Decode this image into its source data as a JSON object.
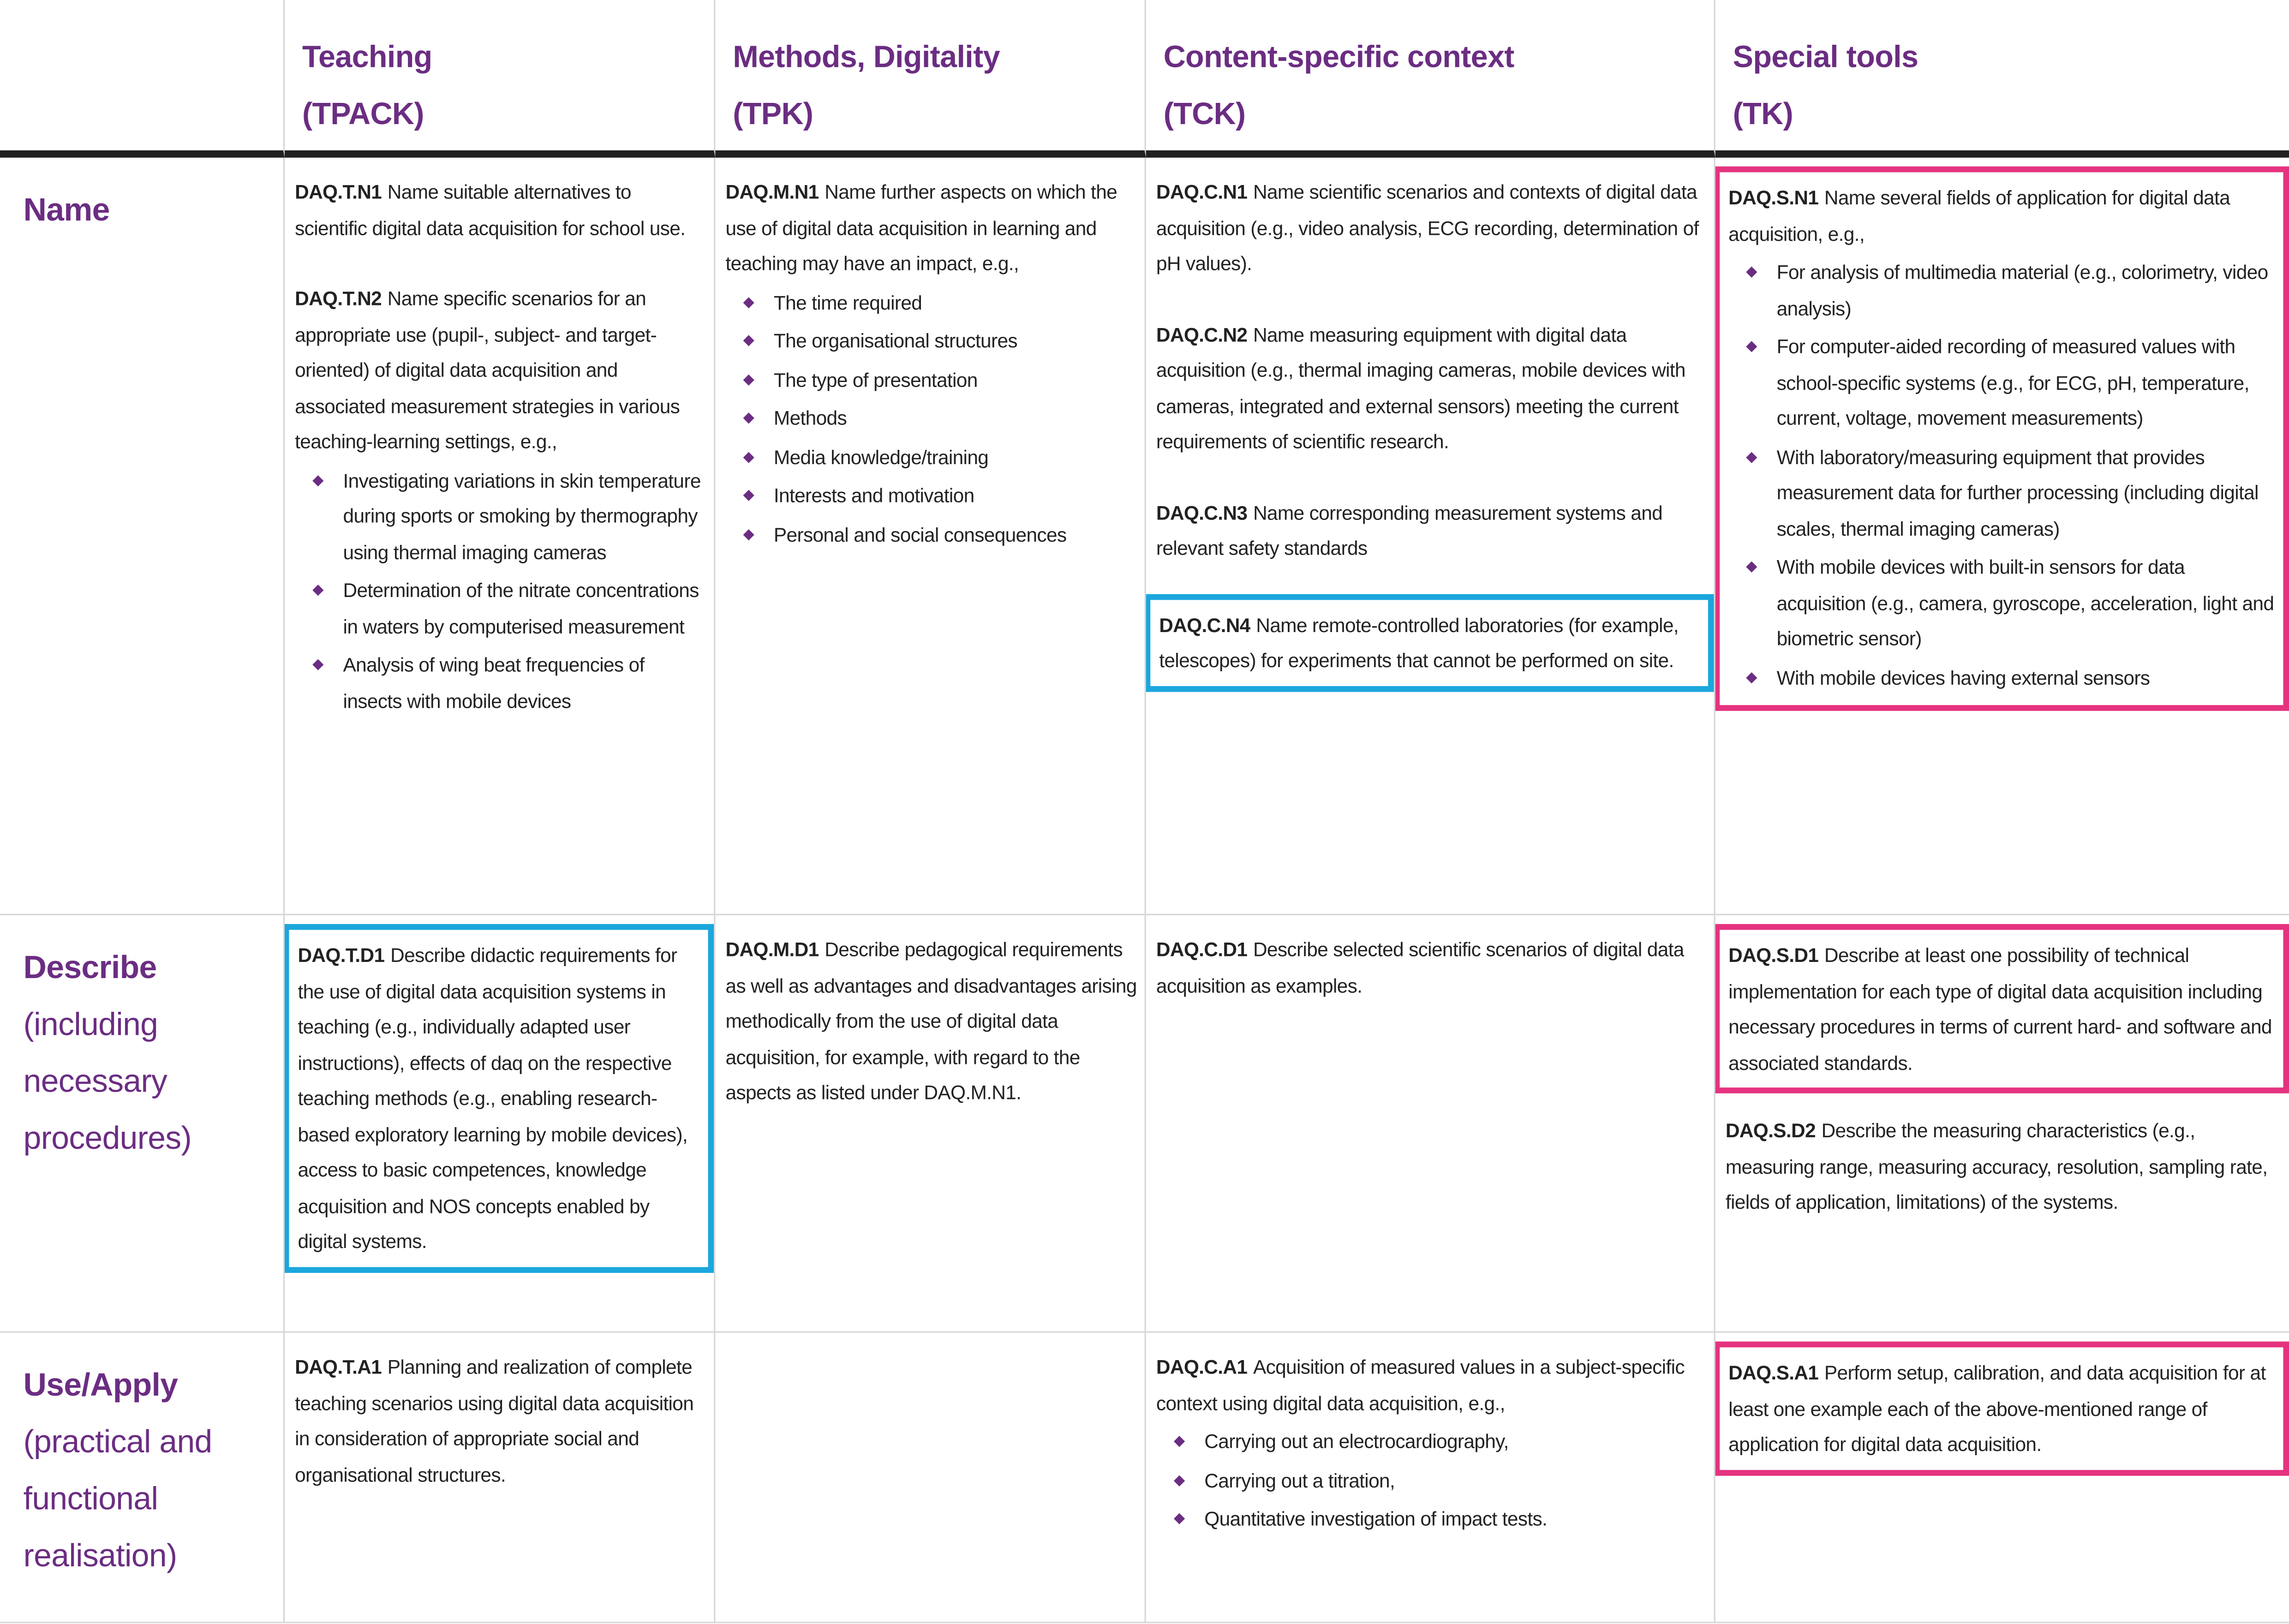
{
  "header": {
    "columns": [
      {
        "title": "Teaching",
        "code": "(TPACK)"
      },
      {
        "title": "Methods, Digitality",
        "code": "(TPK)"
      },
      {
        "title": "Content-specific context",
        "code": "(TCK)"
      },
      {
        "title": "Special tools",
        "code": "(TK)"
      }
    ]
  },
  "frame_colors": {
    "blue": "#1ba6dd",
    "pink": "#e5337f"
  },
  "rows": [
    {
      "title": "Name",
      "cells": [
        [
          {
            "id": "DAQ.T.N1",
            "text": "Name suitable alternatives to scientific digital data acquisition for school use."
          },
          {
            "id": "DAQ.T.N2",
            "text": "Name specific scenarios for an appropriate use (pupil-, subject- and target-oriented) of digital data acquisition and associated measurement strategies in various teaching-learning settings, e.g.,",
            "bullets": [
              "Investigating variations in skin temperature during sports or smoking by thermography using thermal imaging cameras",
              "Determination of the nitrate concentrations in waters by computerised measurement",
              "Analysis of wing beat frequencies of insects with mobile devices"
            ]
          }
        ],
        [
          {
            "id": "DAQ.M.N1",
            "text": "Name further aspects on which the use of digital data acquisition in learning and teaching may have an impact, e.g.,",
            "bullets": [
              "The time required",
              "The organisational structures",
              "The type of presentation",
              "Methods",
              "Media knowledge/training",
              "Interests and motivation",
              "Personal and social consequences"
            ]
          }
        ],
        [
          {
            "id": "DAQ.C.N1",
            "text": "Name scientific scenarios and contexts of digital data acquisition (e.g., video analysis, ECG recording, determination of pH values)."
          },
          {
            "id": "DAQ.C.N2",
            "text": "Name measuring equipment with digital data acquisition (e.g., thermal imaging cameras, mobile devices with cameras, integrated and external sensors) meeting the current requirements of scientific research."
          },
          {
            "id": "DAQ.C.N3",
            "text": "Name corresponding measurement systems and relevant safety standards"
          },
          {
            "id": "DAQ.C.N4",
            "text": "Name remote-controlled laboratories (for example, telescopes) for experiments that cannot be performed on site.",
            "frame": "blue"
          }
        ],
        [
          {
            "id": "DAQ.S.N1",
            "text": "Name several fields of application for digital data acquisition, e.g.,",
            "frame": "pink",
            "bullets": [
              "For analysis of multimedia material (e.g., colorimetry, video analysis)",
              "For computer-aided recording of measured values with school-specific systems (e.g., for ECG, pH, temperature, current, voltage, movement measurements)",
              "With laboratory/measuring equipment that provides measurement data for further processing (including digital scales, thermal imaging cameras)",
              "With mobile devices with built-in sensors for data acquisition (e.g., camera, gyroscope, acceleration, light and biometric sensor)",
              "With mobile devices having external sensors"
            ]
          }
        ]
      ]
    },
    {
      "title": "Describe",
      "subtitle": "(including necessary procedures)",
      "cells": [
        [
          {
            "id": "DAQ.T.D1",
            "text": "Describe didactic requirements for the use of digital data acquisition systems in teaching (e.g., individually adapted user instructions), effects of daq on the respective teaching methods (e.g., enabling research-based exploratory learning by mobile devices), access to basic competences, knowledge acquisition and NOS concepts enabled by digital systems.",
            "frame": "blue"
          }
        ],
        [
          {
            "id": "DAQ.M.D1",
            "text": "Describe pedagogical requirements as well as advantages and disadvantages arising methodically from the use of digital data acquisition, for example, with regard to the aspects as listed under DAQ.M.N1."
          }
        ],
        [
          {
            "id": "DAQ.C.D1",
            "text": "Describe selected scientific scenarios of digital data acquisition as examples."
          }
        ],
        [
          {
            "id": "DAQ.S.D1",
            "text": "Describe at least one possibility of technical implementation for each type of digital data acquisition including necessary procedures in terms of current hard- and software and associated standards.",
            "frame": "pink"
          },
          {
            "id": "DAQ.S.D2",
            "text": "Describe the measuring characteristics (e.g., measuring range, measuring accuracy, resolution, sampling rate, fields of application, limitations) of the systems."
          }
        ]
      ]
    },
    {
      "title": "Use/Apply",
      "subtitle": "(practical and functional realisation)",
      "cells": [
        [
          {
            "id": "DAQ.T.A1",
            "text": "Planning and realization of complete teaching scenarios using digital data acquisition in consideration of appropriate social and organisational structures."
          }
        ],
        [],
        [
          {
            "id": "DAQ.C.A1",
            "text": "Acquisition of measured values in a subject-specific context using digital data acquisition, e.g.,",
            "bullets": [
              "Carrying out an electrocardiography,",
              "Carrying out a titration,",
              "Quantitative investigation of impact tests."
            ]
          }
        ],
        [
          {
            "id": "DAQ.S.A1",
            "text": "Perform setup, calibration, and data acquisition for at least one example each of the above-mentioned range of application for digital data acquisition.",
            "frame": "pink"
          }
        ]
      ]
    }
  ]
}
